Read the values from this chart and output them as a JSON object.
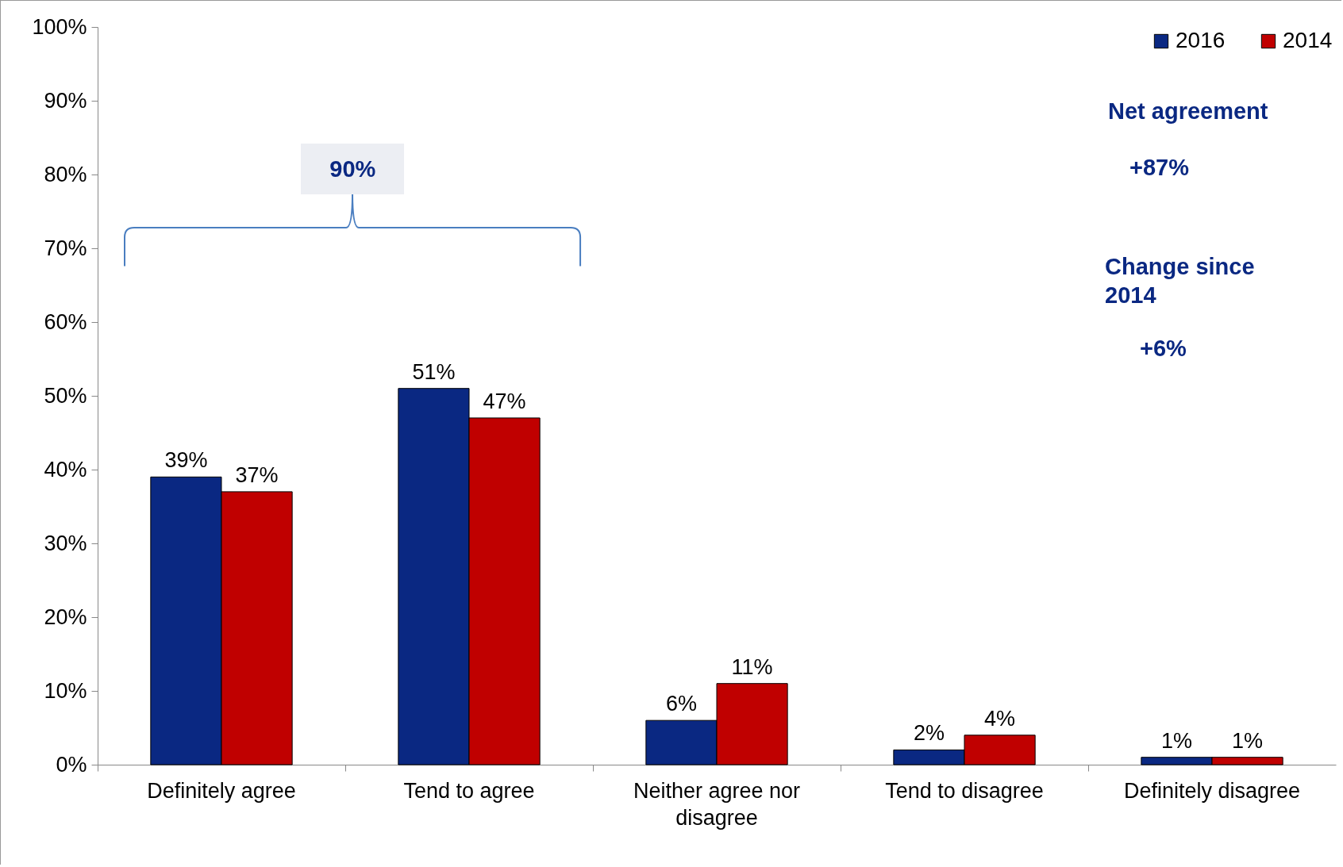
{
  "chart_data": {
    "type": "bar",
    "categories": [
      "Definitely agree",
      "Tend to agree",
      "Neither agree nor disagree",
      "Tend to disagree",
      "Definitely disagree"
    ],
    "series": [
      {
        "name": "2016",
        "color": "#0a2882",
        "values": [
          39,
          51,
          6,
          2,
          1
        ],
        "value_labels": [
          "39%",
          "51%",
          "6%",
          "2%",
          "1%"
        ]
      },
      {
        "name": "2014",
        "color": "#c00000",
        "values": [
          37,
          47,
          11,
          4,
          1
        ],
        "value_labels": [
          "37%",
          "47%",
          "11%",
          "4%",
          "1%"
        ]
      }
    ],
    "ylim": [
      0,
      100
    ],
    "yticks": [
      {
        "value": 0,
        "label": "0%"
      },
      {
        "value": 10,
        "label": "10%"
      },
      {
        "value": 20,
        "label": "20%"
      },
      {
        "value": 30,
        "label": "30%"
      },
      {
        "value": 40,
        "label": "40%"
      },
      {
        "value": 50,
        "label": "50%"
      },
      {
        "value": 60,
        "label": "60%"
      },
      {
        "value": 70,
        "label": "70%"
      },
      {
        "value": 80,
        "label": "80%"
      },
      {
        "value": 90,
        "label": "90%"
      },
      {
        "value": 100,
        "label": "100%"
      }
    ],
    "annotations": [
      "90%",
      "Net agreement",
      "+87%",
      "Change since 2014",
      "+6%"
    ],
    "legend": "top right",
    "grid": false
  }
}
